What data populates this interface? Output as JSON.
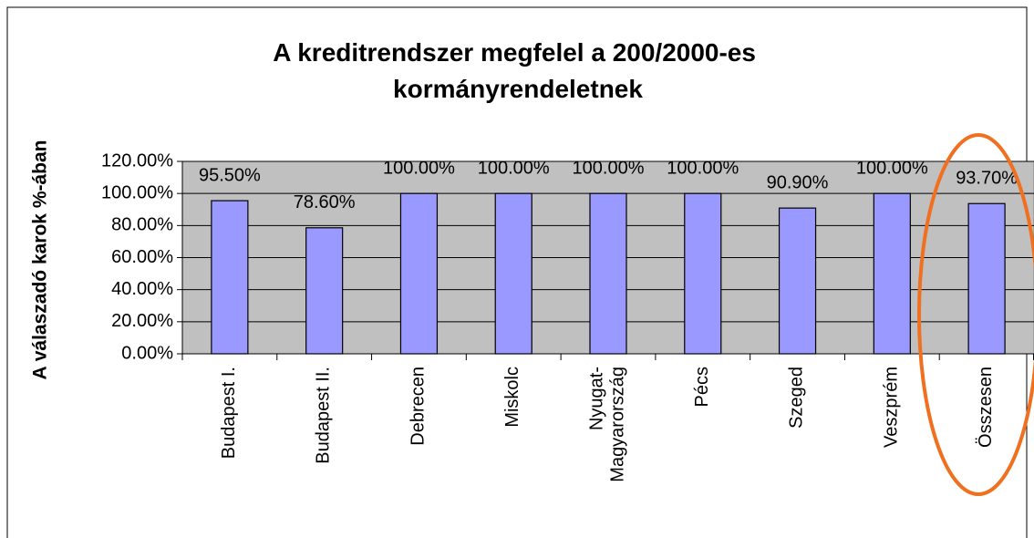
{
  "chart_data": {
    "type": "bar",
    "title": "A kreditrendszer megfelel a 200/2000-es kormányrendeletnek",
    "y_label": "A válaszadó karok %-ában",
    "categories": [
      "Budapest I.",
      "Budapest II.",
      "Debrecen",
      "Miskolc",
      "Nyugat-\nMagyarország",
      "Pécs",
      "Szeged",
      "Veszprém",
      "Összesen"
    ],
    "values": [
      95.5,
      78.6,
      100,
      100,
      100,
      100,
      90.9,
      100,
      93.7
    ],
    "value_labels": [
      "95.50%",
      "78.60%",
      "100.00%",
      "100.00%",
      "100.00%",
      "100.00%",
      "90.90%",
      "100.00%",
      "93.70%"
    ],
    "color": "#9999ff",
    "ylim": [
      0,
      120
    ],
    "yticks": [
      {
        "value": 0,
        "label": "0.00%"
      },
      {
        "value": 20,
        "label": "20.00%"
      },
      {
        "value": 40,
        "label": "40.00%"
      },
      {
        "value": 60,
        "label": "60.00%"
      },
      {
        "value": 80,
        "label": "80.00%"
      },
      {
        "value": 100,
        "label": "100.00%"
      },
      {
        "value": 120,
        "label": "120.00%"
      }
    ],
    "grid": true
  }
}
